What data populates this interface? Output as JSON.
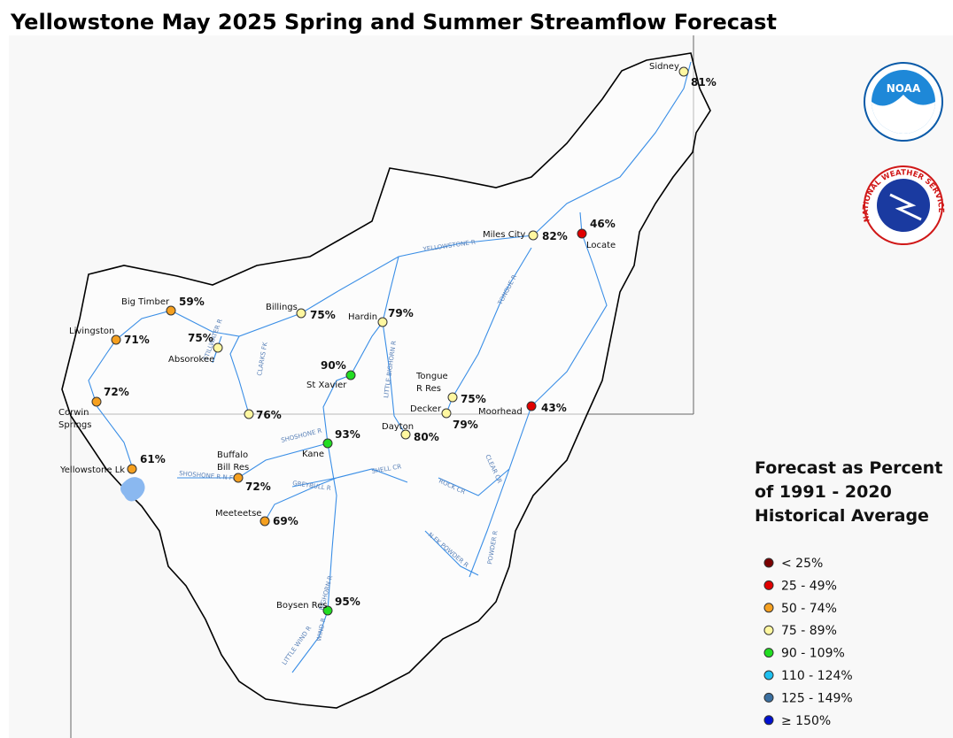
{
  "title": "Yellowstone May 2025 Spring and Summer Streamflow Forecast",
  "stations": [
    {
      "name": [
        "Sidney"
      ],
      "percent": "81%",
      "color": "#fff7a0"
    },
    {
      "name": [
        "Miles City"
      ],
      "percent": "82%",
      "color": "#fff7a0"
    },
    {
      "name": [
        "Locate"
      ],
      "percent": "46%",
      "color": "#e00000"
    },
    {
      "name": [
        "Big Timber"
      ],
      "percent": "59%",
      "color": "#f5a020"
    },
    {
      "name": [
        "Billings"
      ],
      "percent": "75%",
      "color": "#fff7a0"
    },
    {
      "name": [
        "Hardin"
      ],
      "percent": "79%",
      "color": "#fff7a0"
    },
    {
      "name": [
        "Livingston"
      ],
      "percent": "71%",
      "color": "#f5a020"
    },
    {
      "name": [
        "Absorokee"
      ],
      "percent": "75%",
      "color": "#fff7a0"
    },
    {
      "name": [
        "St Xavier"
      ],
      "percent": "90%",
      "color": "#22dd22"
    },
    {
      "name": [
        "Corwin",
        "Springs"
      ],
      "percent": "72%",
      "color": "#f5a020"
    },
    {
      "name": [
        "Tongue",
        "R Res"
      ],
      "percent": "75%",
      "color": "#fff7a0"
    },
    {
      "name": [
        "Moorhead"
      ],
      "percent": "43%",
      "color": "#e00000"
    },
    {
      "name": [
        "Decker"
      ],
      "percent": "79%",
      "color": "#fff7a0"
    },
    {
      "name": [
        "Dayton"
      ],
      "percent": "80%",
      "color": "#fff7a0"
    },
    {
      "name": [
        "Kane"
      ],
      "percent": "93%",
      "color": "#22dd22"
    },
    {
      "name": [
        "Yellowstone Lk"
      ],
      "percent": "61%",
      "color": "#f5a020"
    },
    {
      "name": [
        "Buffalo",
        "Bill Res"
      ],
      "percent": "72%",
      "color": "#f5a020"
    },
    {
      "name": [
        "Meeteetse"
      ],
      "percent": "69%",
      "color": "#f5a020"
    },
    {
      "name": [
        "Boysen Res"
      ],
      "percent": "95%",
      "color": "#22dd22"
    },
    {
      "name": [],
      "percent": "76%",
      "color": "#fff7a0"
    }
  ],
  "rivers": [
    "YELLOWSTONE R",
    "TONGUE R",
    "LITTLE BIGHORN R",
    "SHOSHONE R",
    "GREYBULL R",
    "SHELL CR",
    "BIGHORN R",
    "WIND R",
    "LITTLE WIND R",
    "CLEAR CR",
    "ROCK CR",
    "POWDER R",
    "N FK POWDER R",
    "STILLWATER R",
    "CLARKS FK",
    "SHOSHONE R N FK"
  ],
  "logos": {
    "noaa": "NOAA",
    "nws": "NATIONAL WEATHER SERVICE"
  },
  "legend": {
    "title": [
      "Forecast as Percent",
      "of 1991 - 2020",
      "Historical Average"
    ],
    "entries": [
      {
        "label": "< 25%",
        "color": "#7a0000"
      },
      {
        "label": "25 - 49%",
        "color": "#e00000"
      },
      {
        "label": "50 - 74%",
        "color": "#f5a020"
      },
      {
        "label": "75 - 89%",
        "color": "#fff7a0"
      },
      {
        "label": "90 - 109%",
        "color": "#22dd22"
      },
      {
        "label": "110 - 124%",
        "color": "#1ec0f0"
      },
      {
        "label": "125 - 149%",
        "color": "#3a6fa0"
      },
      {
        "label": "≥ 150%",
        "color": "#0010d0"
      }
    ]
  }
}
